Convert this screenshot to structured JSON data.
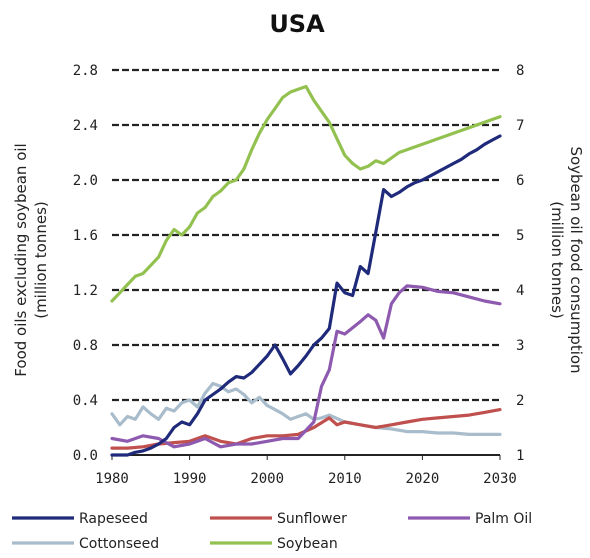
{
  "chart_data": {
    "type": "line",
    "title": "USA",
    "ylabel": "Food oils excluding soybean oil (million tonnes)",
    "y2label": "Soybean oil food consumption (million tonnes)",
    "xlim": [
      1980,
      2030
    ],
    "ylim": [
      0,
      2.8
    ],
    "y2lim": [
      1,
      8
    ],
    "x_ticks": [
      "1980",
      "1990",
      "2000",
      "2010",
      "2020",
      "2030"
    ],
    "y_ticks": [
      "0.0",
      "0.4",
      "0.8",
      "1.2",
      "1.6",
      "2.0",
      "2.4",
      "2.8"
    ],
    "y2_ticks": [
      "1",
      "2",
      "3",
      "4",
      "5",
      "6",
      "7",
      "8"
    ],
    "grid": "horizontal-dashed",
    "legend_placement": "bottom",
    "series": [
      {
        "name": "Rapeseed",
        "axis": "left",
        "color": "#1f2a7a",
        "points": [
          [
            1980,
            0.0
          ],
          [
            1981,
            0.0
          ],
          [
            1982,
            0.0
          ],
          [
            1983,
            0.02
          ],
          [
            1984,
            0.03
          ],
          [
            1985,
            0.05
          ],
          [
            1986,
            0.08
          ],
          [
            1987,
            0.12
          ],
          [
            1988,
            0.2
          ],
          [
            1989,
            0.24
          ],
          [
            1990,
            0.22
          ],
          [
            1991,
            0.3
          ],
          [
            1992,
            0.4
          ],
          [
            1993,
            0.44
          ],
          [
            1994,
            0.48
          ],
          [
            1995,
            0.53
          ],
          [
            1996,
            0.57
          ],
          [
            1997,
            0.56
          ],
          [
            1998,
            0.6
          ],
          [
            1999,
            0.66
          ],
          [
            2000,
            0.72
          ],
          [
            2001,
            0.8
          ],
          [
            2002,
            0.7
          ],
          [
            2003,
            0.59
          ],
          [
            2004,
            0.65
          ],
          [
            2005,
            0.72
          ],
          [
            2006,
            0.8
          ],
          [
            2007,
            0.85
          ],
          [
            2008,
            0.92
          ],
          [
            2009,
            1.25
          ],
          [
            2010,
            1.18
          ],
          [
            2011,
            1.16
          ],
          [
            2012,
            1.37
          ],
          [
            2013,
            1.32
          ],
          [
            2014,
            1.62
          ],
          [
            2015,
            1.93
          ],
          [
            2016,
            1.88
          ],
          [
            2017,
            1.91
          ],
          [
            2018,
            1.95
          ],
          [
            2019,
            1.98
          ],
          [
            2020,
            2.0
          ],
          [
            2021,
            2.03
          ],
          [
            2022,
            2.06
          ],
          [
            2023,
            2.09
          ],
          [
            2024,
            2.12
          ],
          [
            2025,
            2.15
          ],
          [
            2026,
            2.19
          ],
          [
            2027,
            2.22
          ],
          [
            2028,
            2.26
          ],
          [
            2029,
            2.29
          ],
          [
            2030,
            2.32
          ]
        ]
      },
      {
        "name": "Sunflower",
        "axis": "left",
        "color": "#c0504d",
        "points": [
          [
            1980,
            0.05
          ],
          [
            1982,
            0.05
          ],
          [
            1984,
            0.06
          ],
          [
            1986,
            0.08
          ],
          [
            1988,
            0.09
          ],
          [
            1990,
            0.1
          ],
          [
            1992,
            0.14
          ],
          [
            1994,
            0.1
          ],
          [
            1996,
            0.08
          ],
          [
            1998,
            0.12
          ],
          [
            2000,
            0.14
          ],
          [
            2002,
            0.14
          ],
          [
            2004,
            0.15
          ],
          [
            2006,
            0.2
          ],
          [
            2008,
            0.27
          ],
          [
            2009,
            0.22
          ],
          [
            2010,
            0.24
          ],
          [
            2012,
            0.22
          ],
          [
            2014,
            0.2
          ],
          [
            2016,
            0.22
          ],
          [
            2018,
            0.24
          ],
          [
            2020,
            0.26
          ],
          [
            2022,
            0.27
          ],
          [
            2024,
            0.28
          ],
          [
            2026,
            0.29
          ],
          [
            2028,
            0.31
          ],
          [
            2030,
            0.33
          ]
        ]
      },
      {
        "name": "Palm Oil",
        "axis": "left",
        "color": "#8e5ab0",
        "points": [
          [
            1980,
            0.12
          ],
          [
            1982,
            0.1
          ],
          [
            1984,
            0.14
          ],
          [
            1986,
            0.12
          ],
          [
            1988,
            0.06
          ],
          [
            1990,
            0.08
          ],
          [
            1992,
            0.12
          ],
          [
            1994,
            0.06
          ],
          [
            1996,
            0.08
          ],
          [
            1998,
            0.08
          ],
          [
            2000,
            0.1
          ],
          [
            2002,
            0.12
          ],
          [
            2004,
            0.12
          ],
          [
            2006,
            0.24
          ],
          [
            2007,
            0.5
          ],
          [
            2008,
            0.62
          ],
          [
            2009,
            0.9
          ],
          [
            2010,
            0.88
          ],
          [
            2012,
            0.97
          ],
          [
            2013,
            1.02
          ],
          [
            2014,
            0.98
          ],
          [
            2015,
            0.85
          ],
          [
            2016,
            1.1
          ],
          [
            2017,
            1.18
          ],
          [
            2018,
            1.23
          ],
          [
            2020,
            1.22
          ],
          [
            2022,
            1.19
          ],
          [
            2024,
            1.18
          ],
          [
            2026,
            1.15
          ],
          [
            2028,
            1.12
          ],
          [
            2030,
            1.1
          ]
        ]
      },
      {
        "name": "Cottonseed",
        "axis": "left",
        "color": "#a9bccb",
        "points": [
          [
            1980,
            0.3
          ],
          [
            1981,
            0.22
          ],
          [
            1982,
            0.28
          ],
          [
            1983,
            0.26
          ],
          [
            1984,
            0.35
          ],
          [
            1985,
            0.3
          ],
          [
            1986,
            0.26
          ],
          [
            1987,
            0.34
          ],
          [
            1988,
            0.32
          ],
          [
            1989,
            0.38
          ],
          [
            1990,
            0.4
          ],
          [
            1991,
            0.35
          ],
          [
            1992,
            0.45
          ],
          [
            1993,
            0.52
          ],
          [
            1994,
            0.5
          ],
          [
            1995,
            0.46
          ],
          [
            1996,
            0.48
          ],
          [
            1997,
            0.44
          ],
          [
            1998,
            0.38
          ],
          [
            1999,
            0.42
          ],
          [
            2000,
            0.36
          ],
          [
            2001,
            0.33
          ],
          [
            2002,
            0.3
          ],
          [
            2003,
            0.26
          ],
          [
            2004,
            0.28
          ],
          [
            2005,
            0.3
          ],
          [
            2006,
            0.26
          ],
          [
            2007,
            0.27
          ],
          [
            2008,
            0.29
          ],
          [
            2010,
            0.24
          ],
          [
            2012,
            0.22
          ],
          [
            2014,
            0.2
          ],
          [
            2016,
            0.19
          ],
          [
            2018,
            0.17
          ],
          [
            2020,
            0.17
          ],
          [
            2022,
            0.16
          ],
          [
            2024,
            0.16
          ],
          [
            2026,
            0.15
          ],
          [
            2028,
            0.15
          ],
          [
            2030,
            0.15
          ]
        ]
      },
      {
        "name": "Soybean",
        "axis": "right",
        "color": "#93c150",
        "points": [
          [
            1980,
            3.8
          ],
          [
            1981,
            3.95
          ],
          [
            1982,
            4.1
          ],
          [
            1983,
            4.25
          ],
          [
            1984,
            4.3
          ],
          [
            1985,
            4.45
          ],
          [
            1986,
            4.6
          ],
          [
            1987,
            4.9
          ],
          [
            1988,
            5.1
          ],
          [
            1989,
            5.0
          ],
          [
            1990,
            5.15
          ],
          [
            1991,
            5.4
          ],
          [
            1992,
            5.5
          ],
          [
            1993,
            5.7
          ],
          [
            1994,
            5.8
          ],
          [
            1995,
            5.95
          ],
          [
            1996,
            6.0
          ],
          [
            1997,
            6.2
          ],
          [
            1998,
            6.55
          ],
          [
            1999,
            6.85
          ],
          [
            2000,
            7.1
          ],
          [
            2001,
            7.3
          ],
          [
            2002,
            7.5
          ],
          [
            2003,
            7.6
          ],
          [
            2004,
            7.65
          ],
          [
            2005,
            7.7
          ],
          [
            2006,
            7.45
          ],
          [
            2007,
            7.25
          ],
          [
            2008,
            7.05
          ],
          [
            2009,
            6.75
          ],
          [
            2010,
            6.45
          ],
          [
            2011,
            6.3
          ],
          [
            2012,
            6.2
          ],
          [
            2013,
            6.25
          ],
          [
            2014,
            6.35
          ],
          [
            2015,
            6.3
          ],
          [
            2016,
            6.4
          ],
          [
            2017,
            6.5
          ],
          [
            2018,
            6.55
          ],
          [
            2019,
            6.6
          ],
          [
            2020,
            6.65
          ],
          [
            2021,
            6.7
          ],
          [
            2022,
            6.75
          ],
          [
            2023,
            6.8
          ],
          [
            2024,
            6.85
          ],
          [
            2025,
            6.9
          ],
          [
            2026,
            6.95
          ],
          [
            2027,
            7.0
          ],
          [
            2028,
            7.05
          ],
          [
            2029,
            7.1
          ],
          [
            2030,
            7.15
          ]
        ]
      }
    ]
  }
}
